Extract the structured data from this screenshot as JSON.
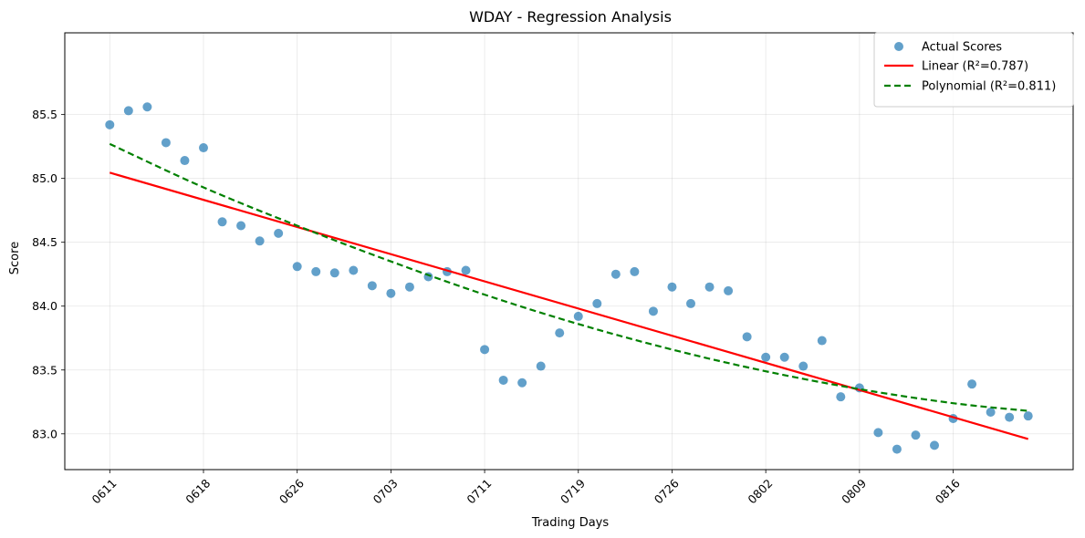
{
  "chart_data": {
    "type": "scatter",
    "title": "WDAY - Regression Analysis",
    "xlabel": "Trading Days",
    "ylabel": "Score",
    "ylim": [
      82.72,
      86.14
    ],
    "xlim": [
      -2.4,
      51.4
    ],
    "grid": true,
    "legend_position": "top-right",
    "x_ticks": [
      {
        "pos": 0,
        "label": "0611"
      },
      {
        "pos": 5,
        "label": "0618"
      },
      {
        "pos": 10,
        "label": "0626"
      },
      {
        "pos": 15,
        "label": "0703"
      },
      {
        "pos": 20,
        "label": "0711"
      },
      {
        "pos": 25,
        "label": "0719"
      },
      {
        "pos": 30,
        "label": "0726"
      },
      {
        "pos": 35,
        "label": "0802"
      },
      {
        "pos": 40,
        "label": "0809"
      },
      {
        "pos": 45,
        "label": "0816"
      }
    ],
    "y_ticks": [
      83.0,
      83.5,
      84.0,
      84.5,
      85.0,
      85.5
    ],
    "y_tick_labels": [
      "83.0",
      "83.5",
      "84.0",
      "84.5",
      "85.0",
      "85.5"
    ],
    "series": [
      {
        "name": "Actual Scores",
        "kind": "scatter",
        "color": "#1f77b4",
        "x": [
          0,
          1,
          2,
          3,
          4,
          5,
          6,
          7,
          8,
          9,
          10,
          11,
          12,
          13,
          14,
          15,
          16,
          17,
          18,
          19,
          20,
          21,
          22,
          23,
          24,
          25,
          26,
          27,
          28,
          29,
          30,
          31,
          32,
          33,
          34,
          35,
          36,
          37,
          38,
          39,
          40,
          41,
          42,
          43,
          44,
          45,
          46,
          47,
          48,
          49
        ],
        "y": [
          85.42,
          85.53,
          85.56,
          85.28,
          85.14,
          85.24,
          84.66,
          84.63,
          84.51,
          84.57,
          84.31,
          84.27,
          84.26,
          84.28,
          84.16,
          84.1,
          84.15,
          84.23,
          84.27,
          84.28,
          83.66,
          83.42,
          83.4,
          83.53,
          83.79,
          83.92,
          84.02,
          84.25,
          84.27,
          83.96,
          84.15,
          84.02,
          84.15,
          84.12,
          83.76,
          83.6,
          83.6,
          83.53,
          83.73,
          83.29,
          83.36,
          83.01,
          82.88,
          82.99,
          82.91,
          83.12,
          83.39,
          83.17,
          83.13,
          83.14
        ]
      },
      {
        "name": "Linear (R²=0.787)",
        "kind": "line",
        "style": "solid",
        "color": "#ff0000",
        "x": [
          0,
          49
        ],
        "y": [
          85.045,
          82.96
        ]
      },
      {
        "name": "Polynomial (R²=0.811)",
        "kind": "line",
        "style": "dashed",
        "color": "#008000",
        "x": [
          0,
          5,
          10,
          15,
          20,
          25,
          30,
          35,
          40,
          45,
          49
        ],
        "y": [
          85.27,
          84.93,
          84.63,
          84.35,
          84.09,
          83.86,
          83.66,
          83.49,
          83.35,
          83.24,
          83.18
        ]
      }
    ]
  }
}
